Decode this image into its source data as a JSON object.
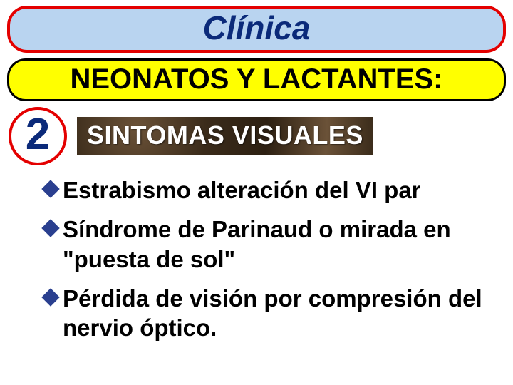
{
  "colors": {
    "title_border": "#e40000",
    "title_bg": "#b9d4f0",
    "title_text": "#0b2a7a",
    "subtitle_bg": "#ffff00",
    "badge_border": "#e40000",
    "badge_text": "#0b2a7a",
    "section_label_bg_a": "#3a2b1a",
    "section_label_bg_b": "#6b5238",
    "section_label_bg_c": "#2d2012",
    "section_label_text": "#ffffff",
    "bullet_marker": "#2a3f8f"
  },
  "title": "Clínica",
  "subtitle": "NEONATOS Y LACTANTES:",
  "section_number": "2",
  "section_label": "SINTOMAS VISUALES",
  "bullets": [
    {
      "lead": "Estrabismo",
      "rest": " alteración del VI par"
    },
    {
      "lead": "Síndrome",
      "rest": " de Parinaud o mirada en \"puesta de sol\""
    },
    {
      "lead": "",
      "rest": " Pérdida de visión por compresión del nervio óptico."
    }
  ],
  "typography": {
    "title_fontsize": 46,
    "subtitle_fontsize": 40,
    "badge_fontsize": 62,
    "section_label_fontsize": 36,
    "bullet_fontsize": 33
  }
}
